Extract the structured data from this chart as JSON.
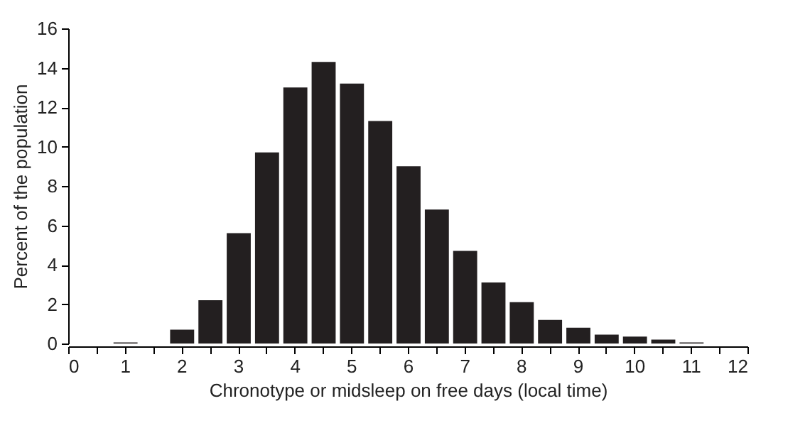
{
  "chart_data": {
    "type": "histogram",
    "xlabel": "Chronotype or midsleep on free days (local time)",
    "ylabel": "Percent of the population",
    "bins": [
      0.75,
      1.25,
      1.75,
      2.25,
      2.75,
      3.25,
      3.75,
      4.25,
      4.75,
      5.25,
      5.75,
      6.25,
      6.75,
      7.25,
      7.75,
      8.25,
      8.75,
      9.25,
      9.75,
      10.25,
      10.75,
      11.25
    ],
    "values": [
      0.05,
      0,
      0.7,
      2.2,
      5.6,
      9.7,
      13.0,
      14.3,
      13.2,
      11.3,
      9.0,
      6.8,
      4.7,
      3.1,
      2.1,
      1.2,
      0.8,
      0.45,
      0.35,
      0.2,
      0.05
    ],
    "color": "#231f20",
    "xlim": [
      0,
      12
    ],
    "ylim": [
      0,
      16
    ],
    "xticks": [
      0,
      {
        "value": 0.5,
        "label": null
      },
      1,
      {
        "value": 1.5,
        "label": null
      },
      2,
      {
        "value": 2.5,
        "label": null
      },
      3,
      {
        "value": 3.5,
        "label": null
      },
      4,
      {
        "value": 4.5,
        "label": null
      },
      5,
      {
        "value": 5.5,
        "label": null
      },
      6,
      {
        "value": 6.5,
        "label": null
      },
      7,
      {
        "value": 7.5,
        "label": null
      },
      8,
      {
        "value": 8.5,
        "label": null
      },
      9,
      {
        "value": 9.5,
        "label": null
      },
      10,
      {
        "value": 10.5,
        "label": null
      },
      11,
      {
        "value": 11.5,
        "label": null
      },
      12
    ],
    "yticks": [
      0,
      2,
      4,
      6,
      8,
      10,
      12,
      14,
      16
    ],
    "grid": false
  }
}
